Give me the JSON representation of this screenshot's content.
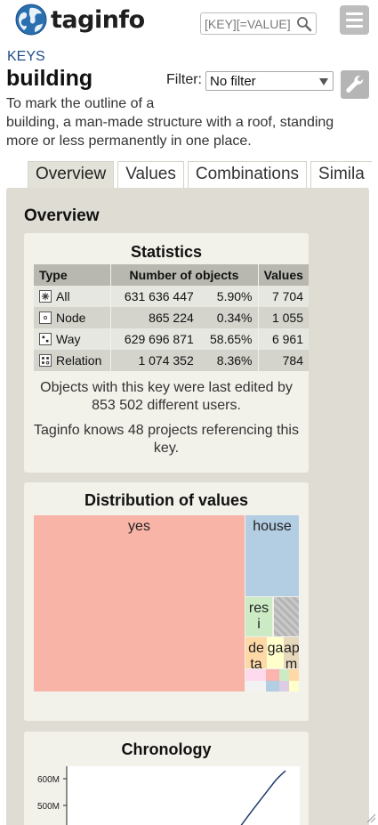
{
  "header": {
    "logo_text": "taginfo",
    "search_placeholder": "[KEY][=VALUE]"
  },
  "breadcrumb": "KEYS",
  "key_name": "building",
  "filter": {
    "label": "Filter:",
    "selected": "No filter"
  },
  "description": {
    "line1": "To mark the outline of a",
    "line2": "building, a man-made structure with a roof, standing more or less permanently in one place."
  },
  "tabs": [
    {
      "label": "Overview",
      "active": true
    },
    {
      "label": "Values",
      "active": false
    },
    {
      "label": "Combinations",
      "active": false
    },
    {
      "label": "Simila",
      "active": false
    }
  ],
  "overview": {
    "title": "Overview",
    "statistics": {
      "title": "Statistics",
      "headers": {
        "type": "Type",
        "objects": "Number of objects",
        "values": "Values"
      },
      "rows": [
        {
          "type": "All",
          "count": "631 636 447",
          "percent": "5.90%",
          "values": "7 704"
        },
        {
          "type": "Node",
          "count": "865 224",
          "percent": "0.34%",
          "values": "1 055"
        },
        {
          "type": "Way",
          "count": "629 696 871",
          "percent": "58.65%",
          "values": "6 961"
        },
        {
          "type": "Relation",
          "count": "1 074 352",
          "percent": "8.36%",
          "values": "784"
        }
      ],
      "note_users": "Objects with this key were last edited by 853 502 different users.",
      "note_projects": "Taginfo knows 48 projects referencing this key."
    },
    "distribution": {
      "title": "Distribution of values",
      "labels": {
        "yes": "yes",
        "house": "house",
        "resi": "res i",
        "de": "de ta",
        "ga": "ga",
        "ap": "ap m"
      },
      "colors": {
        "yes": "#f9b4a8",
        "house": "#b3cde3",
        "resi": "#ccebc5",
        "de": "#fed9a6",
        "ga": "#ffffcc",
        "ap": "#e5d8bd"
      }
    },
    "chronology": {
      "title": "Chronology",
      "ticks": [
        "600M",
        "500M"
      ]
    }
  }
}
